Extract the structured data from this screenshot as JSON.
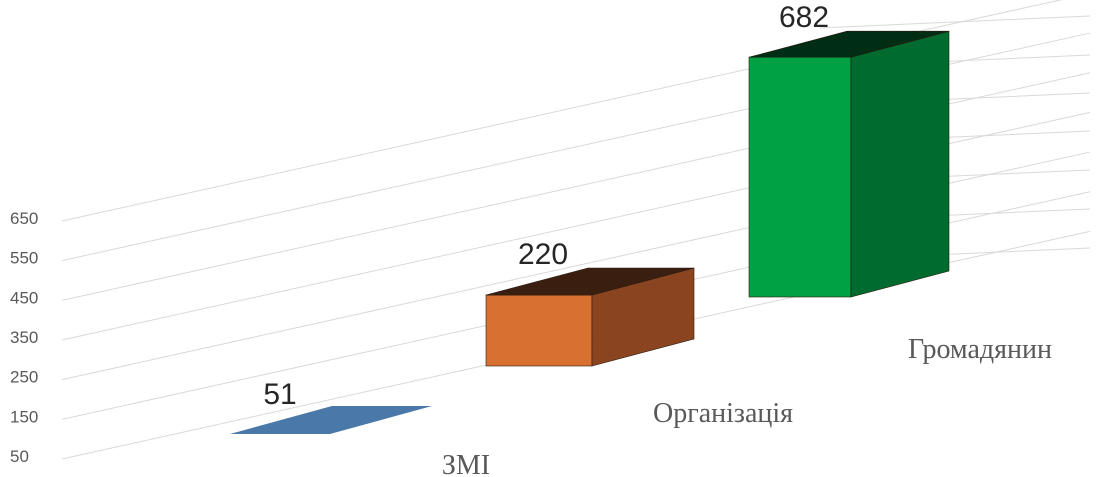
{
  "chart_data": {
    "type": "bar",
    "style": "3d-column",
    "categories": [
      "ЗМІ",
      "Організація",
      "Громадянин"
    ],
    "values": [
      51,
      220,
      682
    ],
    "yticks": [
      50,
      150,
      250,
      350,
      450,
      550,
      650
    ],
    "ylim": [
      50,
      650
    ],
    "grid": true,
    "legend": "none",
    "colors": [
      {
        "front": "#4a78a8",
        "top": "#4a78a8",
        "side": "#35597d"
      },
      {
        "front": "#d87030",
        "top": "#3a1f10",
        "side": "#8a4520"
      },
      {
        "front": "#00a044",
        "top": "#002e14",
        "side": "#006b2e"
      }
    ]
  }
}
